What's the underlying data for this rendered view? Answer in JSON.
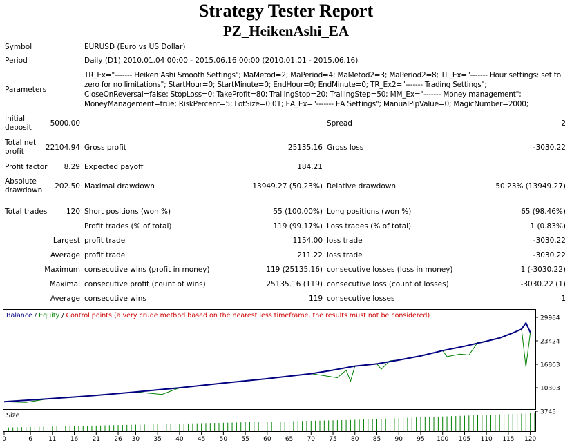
{
  "report": {
    "title": "Strategy Tester Report",
    "subtitle": "PZ_HeikenAshi_EA"
  },
  "info": {
    "symbol_label": "Symbol",
    "symbol_value": "EURUSD (Euro vs US Dollar)",
    "period_label": "Period",
    "period_value": "Daily (D1) 2010.01.04 00:00 - 2015.06.16 00:00 (2010.01.01 - 2015.06.16)",
    "parameters_label": "Parameters",
    "parameters_value": "TR_Ex=\"------- Heiken Ashi Smooth Settings\"; MaMetod=2; MaPeriod=4; MaMetod2=3; MaPeriod2=8; TL_Ex=\"------- Hour settings: set to zero for no limitations\"; StartHour=0; StartMinute=0; EndHour=0; EndMinute=0; TR_Ex2=\"------- Trading Settings\"; CloseOnReversal=false; StopLoss=0; TakeProfit=80; TrailingStop=20; TrailingStep=50; MM_Ex=\"------- Money management\"; MoneyManagement=true; RiskPercent=5; LotSize=0.01; EA_Ex=\"------- EA Settings\"; ManualPipValue=0; MagicNumber=2000;"
  },
  "stats": {
    "initial_deposit_label": "Initial deposit",
    "initial_deposit": "5000.00",
    "spread_label": "Spread",
    "spread": "2",
    "total_net_profit_label": "Total net profit",
    "total_net_profit": "22104.94",
    "gross_profit_label": "Gross profit",
    "gross_profit": "25135.16",
    "gross_loss_label": "Gross loss",
    "gross_loss": "-3030.22",
    "profit_factor_label": "Profit factor",
    "profit_factor": "8.29",
    "expected_payoff_label": "Expected payoff",
    "expected_payoff": "184.21",
    "absolute_drawdown_label": "Absolute drawdown",
    "absolute_drawdown": "202.50",
    "maximal_drawdown_label": "Maximal drawdown",
    "maximal_drawdown": "13949.27 (50.23%)",
    "relative_drawdown_label": "Relative drawdown",
    "relative_drawdown": "50.23% (13949.27)",
    "total_trades_label": "Total trades",
    "total_trades": "120",
    "short_positions_label": "Short positions (won %)",
    "short_positions": "55 (100.00%)",
    "long_positions_label": "Long positions (won %)",
    "long_positions": "65 (98.46%)",
    "profit_trades_label": "Profit trades (% of total)",
    "profit_trades": "119 (99.17%)",
    "loss_trades_label": "Loss trades (% of total)",
    "loss_trades": "1 (0.83%)",
    "largest_label": "Largest",
    "largest_profit_label": "profit trade",
    "largest_profit": "1154.00",
    "largest_loss_label": "loss trade",
    "largest_loss": "-3030.22",
    "average_label": "Average",
    "average_profit_label": "profit trade",
    "average_profit": "211.22",
    "average_loss_label": "loss trade",
    "average_loss": "-3030.22",
    "maximum_label": "Maximum",
    "max_cons_wins_label": "consecutive wins (profit in money)",
    "max_cons_wins": "119 (25135.16)",
    "max_cons_losses_label": "consecutive losses (loss in money)",
    "max_cons_losses": "1 (-3030.22)",
    "maximal_label": "Maximal",
    "maximal_cons_profit_label": "consecutive profit (count of wins)",
    "maximal_cons_profit": "25135.16 (119)",
    "maximal_cons_loss_label": "consecutive loss (count of losses)",
    "maximal_cons_loss": "-3030.22 (1)",
    "avg_label": "Average",
    "avg_cons_wins_label": "consecutive wins",
    "avg_cons_wins": "119",
    "avg_cons_losses_label": "consecutive losses",
    "avg_cons_losses": "1"
  },
  "chart_data": {
    "type": "line",
    "legend": {
      "balance": "Balance",
      "sep1": " / ",
      "equity": "Equity",
      "sep2": " / ",
      "control": "Control points (a very crude method based on the nearest less timeframe, the results must not be considered)"
    },
    "colors": {
      "balance": "#000080",
      "equity": "#008000",
      "control": "#cc0000",
      "size_bars": "#008000"
    },
    "y_ticks": [
      "29984",
      "23424",
      "16863",
      "10303",
      "3743"
    ],
    "ylim": [
      3743,
      29984
    ],
    "size_label": "Size",
    "x_ticks": [
      "0",
      "6",
      "11",
      "16",
      "21",
      "26",
      "30",
      "35",
      "40",
      "45",
      "50",
      "55",
      "60",
      "65",
      "70",
      "75",
      "80",
      "85",
      "90",
      "95",
      "100",
      "105",
      "110",
      "115",
      "120"
    ],
    "xlim": [
      0,
      121
    ],
    "balance": [
      [
        0,
        5000
      ],
      [
        10,
        5900
      ],
      [
        20,
        6900
      ],
      [
        30,
        8100
      ],
      [
        40,
        9400
      ],
      [
        50,
        10900
      ],
      [
        60,
        12300
      ],
      [
        70,
        13900
      ],
      [
        75,
        15000
      ],
      [
        80,
        16300
      ],
      [
        85,
        17000
      ],
      [
        90,
        18200
      ],
      [
        95,
        19500
      ],
      [
        100,
        21200
      ],
      [
        105,
        22600
      ],
      [
        110,
        24200
      ],
      [
        113,
        25200
      ],
      [
        116,
        26800
      ],
      [
        118,
        28000
      ],
      [
        119,
        29984
      ],
      [
        120,
        26955
      ]
    ],
    "equity": [
      [
        0,
        5000
      ],
      [
        5,
        4800
      ],
      [
        10,
        5900
      ],
      [
        15,
        6300
      ],
      [
        20,
        6900
      ],
      [
        30,
        8100
      ],
      [
        36,
        7300
      ],
      [
        40,
        9400
      ],
      [
        50,
        10900
      ],
      [
        60,
        12300
      ],
      [
        70,
        13900
      ],
      [
        76,
        12600
      ],
      [
        78,
        15000
      ],
      [
        79,
        11500
      ],
      [
        80,
        16300
      ],
      [
        85,
        17000
      ],
      [
        86,
        15300
      ],
      [
        88,
        18000
      ],
      [
        90,
        18200
      ],
      [
        95,
        19500
      ],
      [
        100,
        21200
      ],
      [
        101,
        19300
      ],
      [
        104,
        20100
      ],
      [
        106,
        19800
      ],
      [
        108,
        23800
      ],
      [
        110,
        24200
      ],
      [
        113,
        25200
      ],
      [
        116,
        26800
      ],
      [
        118,
        28000
      ],
      [
        119,
        16035
      ],
      [
        120,
        26955
      ]
    ],
    "size_levels": [
      0.05,
      0.52,
      0.92
    ]
  }
}
